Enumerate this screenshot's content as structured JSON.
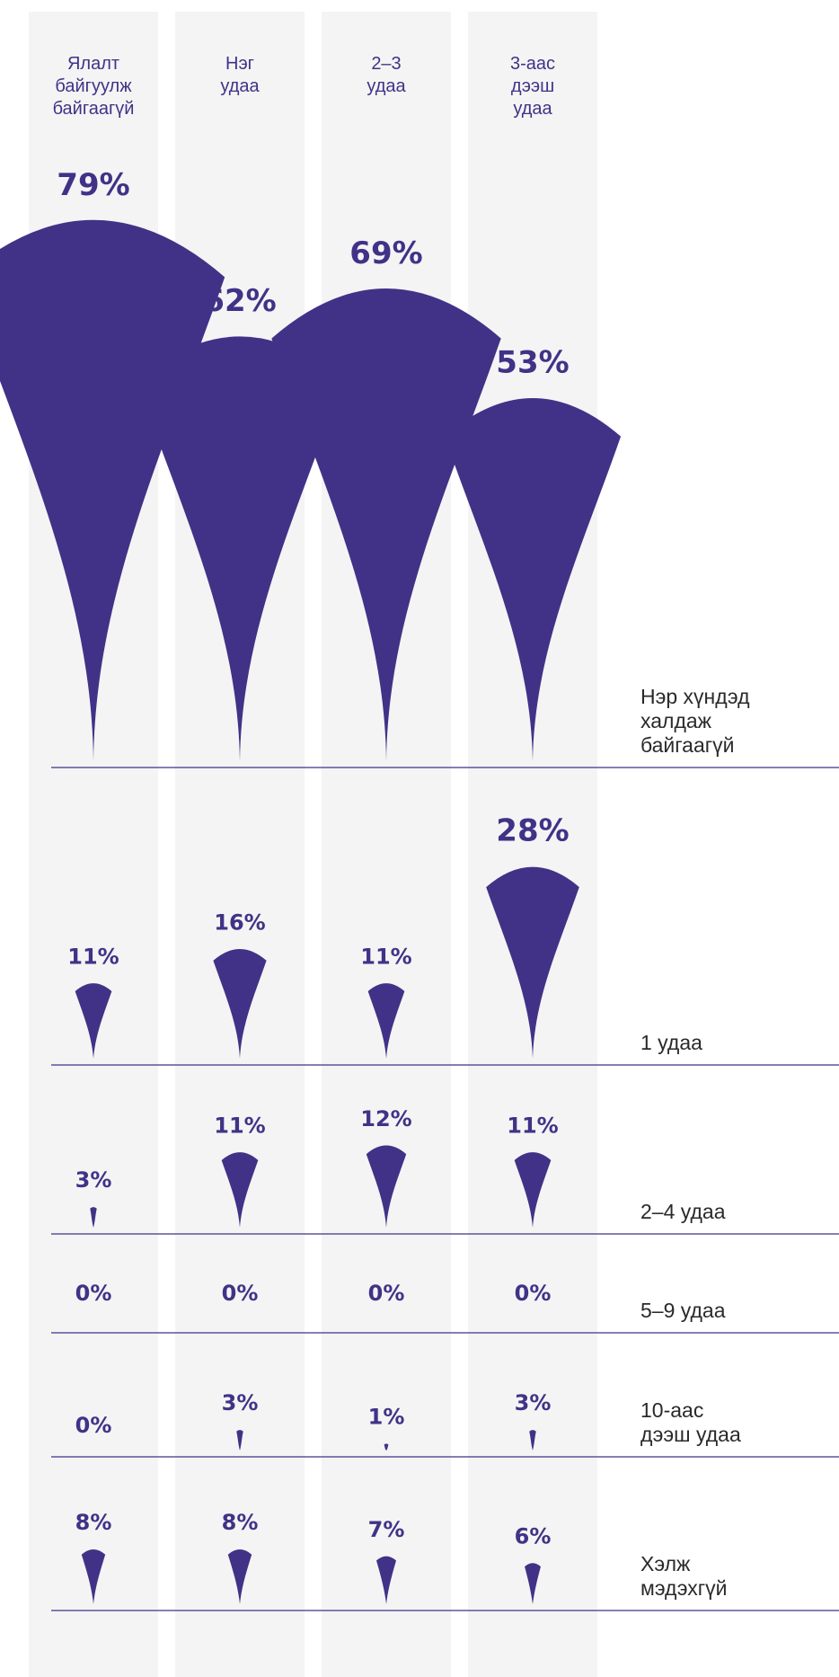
{
  "chart_data": {
    "type": "pictogram",
    "title": "",
    "colors": {
      "mark": "#413287",
      "column": "#f4f4f4",
      "divider": "#413287"
    },
    "categories": [
      [
        "Ялалт",
        "байгуулж",
        "байгаагүй"
      ],
      [
        "Нэг",
        "удаа"
      ],
      [
        "2–3",
        "удаа"
      ],
      [
        "3-аас",
        "дээш",
        "удаа"
      ]
    ],
    "rows": [
      {
        "label": [
          "Нэр хүндэд",
          "халдаж",
          "байгаагүй"
        ],
        "values": [
          "79%",
          "62%",
          "69%",
          "53%"
        ]
      },
      {
        "label": [
          "1 удаа"
        ],
        "values": [
          "11%",
          "16%",
          "11%",
          "28%"
        ]
      },
      {
        "label": [
          "2–4 удаа"
        ],
        "values": [
          "3%",
          "11%",
          "12%",
          "11%"
        ]
      },
      {
        "label": [
          "5–9 удаа"
        ],
        "values": [
          "0%",
          "0%",
          "0%",
          "0%"
        ]
      },
      {
        "label": [
          "10-аас",
          "дээш удаа"
        ],
        "values": [
          "0%",
          "3%",
          "1%",
          "3%"
        ]
      },
      {
        "label": [
          "Хэлж",
          "мэдэхгүй"
        ],
        "values": [
          "8%",
          "8%",
          "7%",
          "6%"
        ]
      }
    ]
  }
}
